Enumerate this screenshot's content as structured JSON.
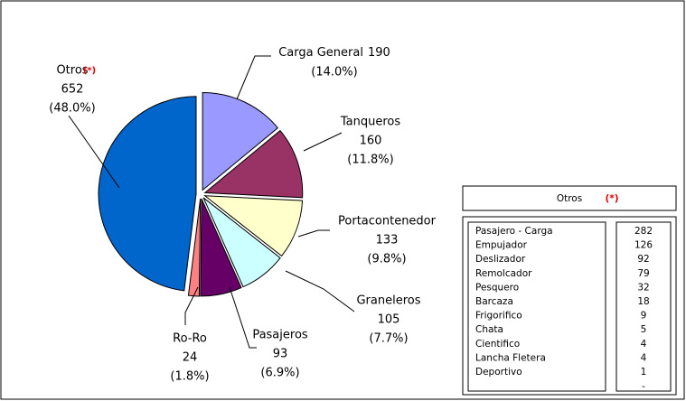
{
  "chart_data": {
    "type": "pie",
    "categories": [
      "Carga General",
      "Tanqueros",
      "Portacontenedor",
      "Graneleros",
      "Pasajeros",
      "Ro-Ro",
      "Otros"
    ],
    "values": [
      190,
      160,
      133,
      105,
      93,
      24,
      652
    ],
    "shares": [
      14.0,
      11.8,
      9.8,
      7.7,
      6.9,
      1.8,
      48.0
    ],
    "share_labels": [
      "(14.0%)",
      "(11.8%)",
      "(9.8%)",
      "(7.7%)",
      "(6.9%)",
      "(1.8%)",
      "(48.0%)"
    ],
    "colors": [
      "#9999ff",
      "#993366",
      "#ffffcc",
      "#ccffff",
      "#660066",
      "#ff8080",
      "#0066cc"
    ],
    "annotation": "(*)"
  },
  "table": {
    "title": "Otros",
    "note": "(*)",
    "rows": [
      [
        "Pasajero - Carga",
        282
      ],
      [
        "Empujador",
        126
      ],
      [
        "Deslizador",
        92
      ],
      [
        "Remolcador",
        79
      ],
      [
        "Pesquero",
        32
      ],
      [
        "Barcaza",
        18
      ],
      [
        "Frigorifico",
        9
      ],
      [
        "Chata",
        5
      ],
      [
        "Cientifico",
        4
      ],
      [
        "Lancha Fletera",
        4
      ],
      [
        "Deportivo",
        1
      ]
    ],
    "footer_mark": "-"
  }
}
